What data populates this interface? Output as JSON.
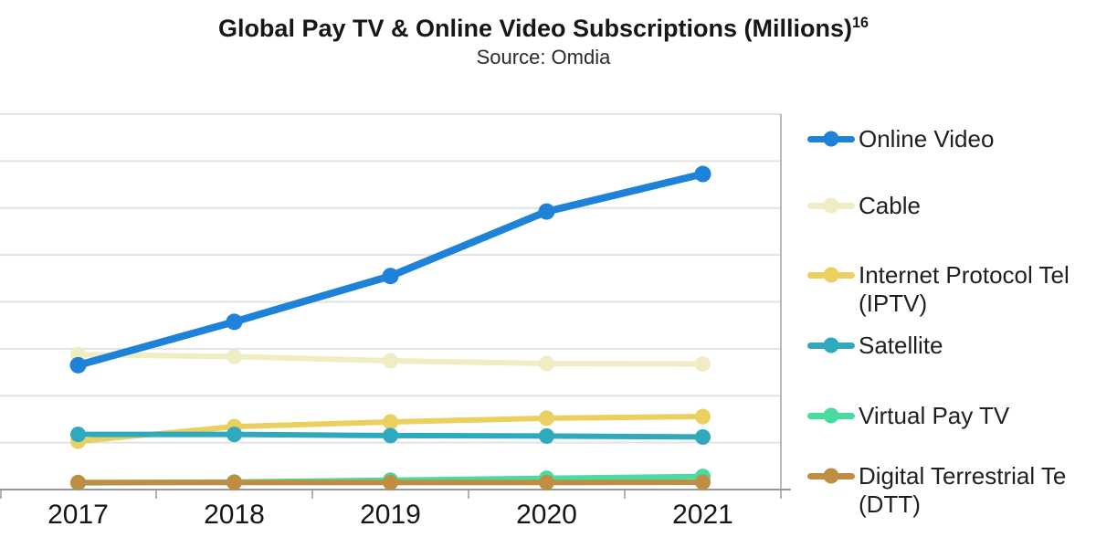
{
  "chart_data": {
    "type": "line",
    "title": "Global Pay TV & Online Video Subscriptions (Millions)",
    "title_superscript": "16",
    "subtitle": "Source: Omdia",
    "x_categories": [
      "2017",
      "2018",
      "2019",
      "2020",
      "2021"
    ],
    "xlabel": "",
    "ylabel": "",
    "ylim": [
      0,
      1600
    ],
    "gridline_step": 200,
    "grid": "horizontal",
    "y_axis_labels_visible": false,
    "legend_position": "right",
    "series": [
      {
        "name": "Online Video",
        "color": "#1e82d9",
        "values": [
          530,
          715,
          910,
          1185,
          1345
        ]
      },
      {
        "name": "Cable",
        "color": "#f0ecc4",
        "values": [
          575,
          567,
          549,
          537,
          535
        ]
      },
      {
        "name": "Internet Protocol Tel (IPTV)",
        "color": "#ebcf5f",
        "values": [
          206,
          268,
          288,
          304,
          311
        ]
      },
      {
        "name": "Satellite",
        "color": "#2ea9be",
        "values": [
          235,
          235,
          230,
          228,
          224
        ]
      },
      {
        "name": "Virtual Pay TV",
        "color": "#49dca1",
        "values": [
          28,
          32,
          40,
          48,
          56
        ]
      },
      {
        "name": "Digital Terrestrial Te (DTT)",
        "color": "#bf8e43",
        "values": [
          30,
          30,
          30,
          30,
          31
        ]
      }
    ]
  },
  "legend": {
    "items": [
      {
        "lines": [
          "Online Video"
        ],
        "series": "Online Video"
      },
      {
        "lines": [
          "Cable"
        ],
        "series": "Cable"
      },
      {
        "lines": [
          "Internet Protocol Tel",
          "(IPTV)"
        ],
        "series": "Internet Protocol Tel (IPTV)"
      },
      {
        "lines": [
          "Satellite"
        ],
        "series": "Satellite"
      },
      {
        "lines": [
          "Virtual Pay TV"
        ],
        "series": "Virtual Pay TV"
      },
      {
        "lines": [
          "Digital Terrestrial Te",
          "(DTT)"
        ],
        "series": "Digital Terrestrial Te (DTT)"
      }
    ]
  },
  "colors": {
    "gridline": "#e3e3e3",
    "axis": "#999999",
    "plot_border": "#a3a3a3",
    "axis_label_text": "#161616",
    "legend_text": "#1f1f1f",
    "title_text": "#171717"
  }
}
